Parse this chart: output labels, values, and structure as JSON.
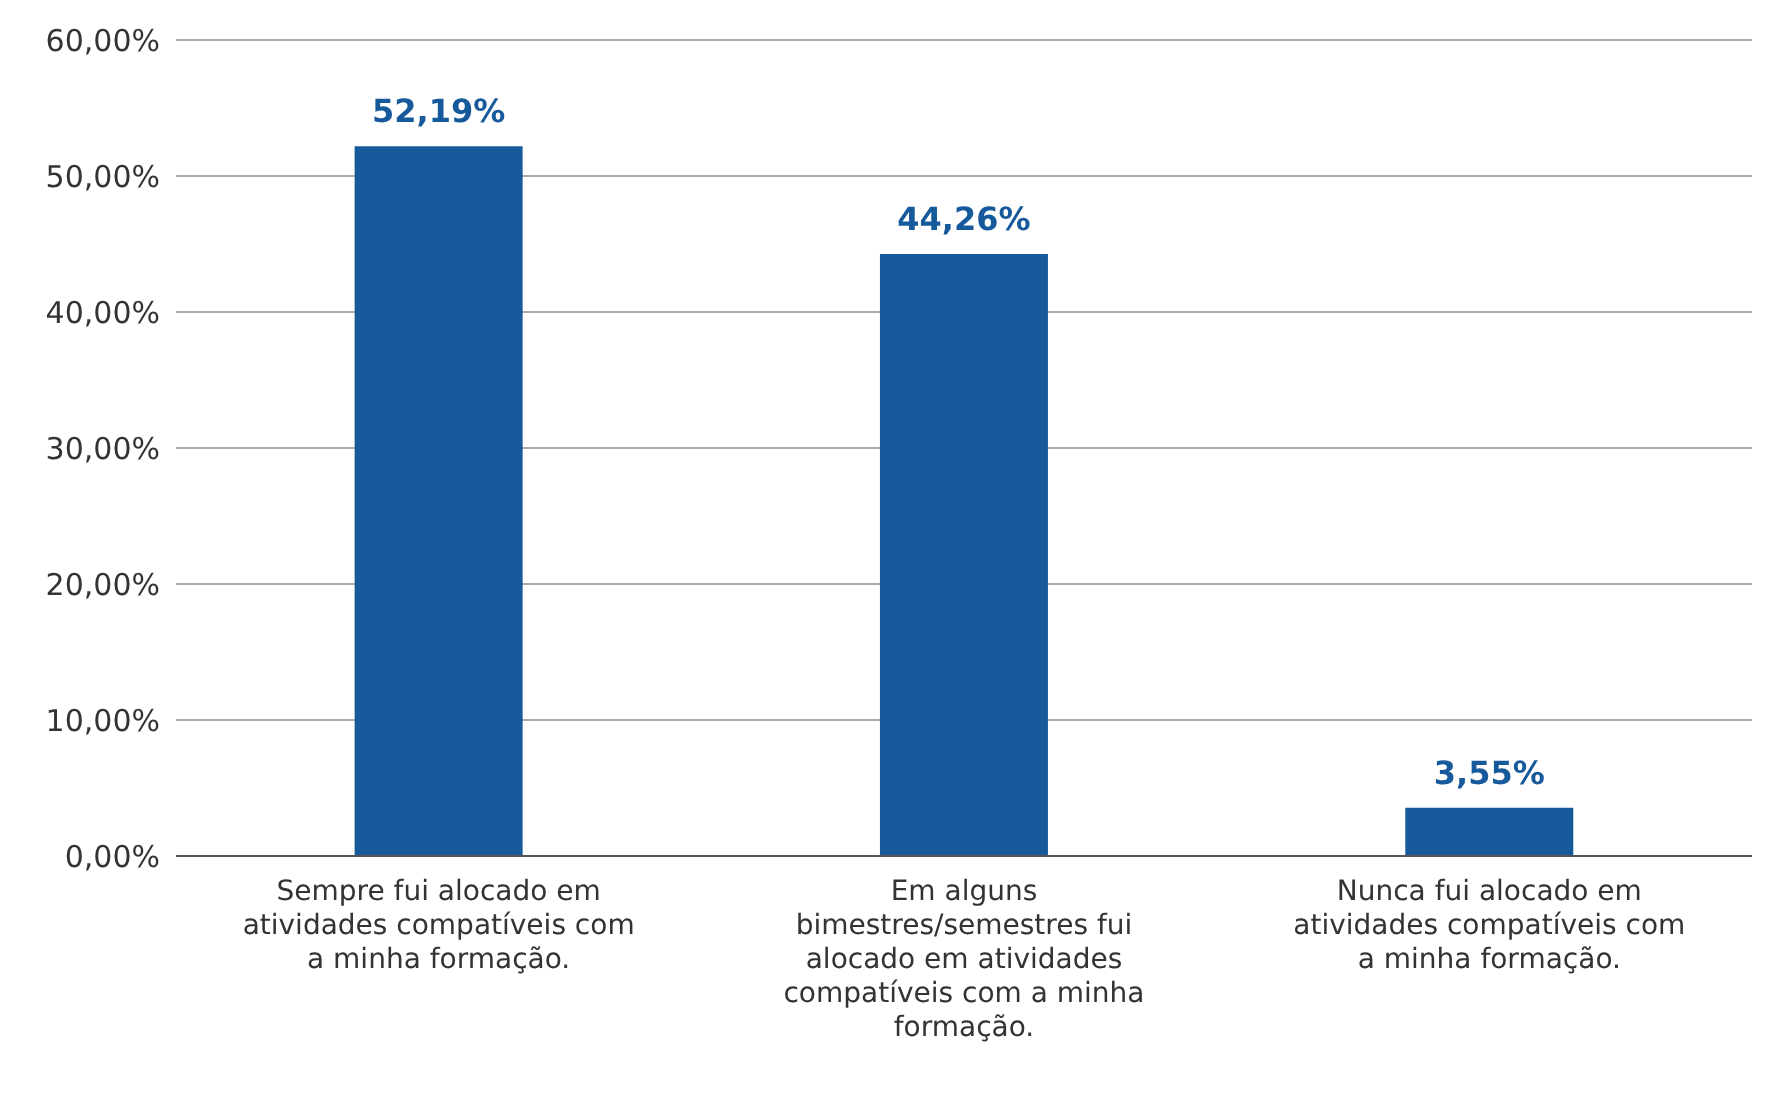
{
  "chart_data": {
    "type": "bar",
    "categories": [
      "Sempre fui alocado em atividades compatíveis com a minha formação.",
      "Em alguns bimestres/semestres fui alocado em atividades compatíveis com a minha formação.",
      "Nunca fui alocado em atividades compatíveis com a minha formação."
    ],
    "values": [
      52.19,
      44.26,
      3.55
    ],
    "value_labels": [
      "52,19%",
      "44,26%",
      "3,55%"
    ],
    "color": "#175a9c",
    "ylim": [
      0,
      60
    ],
    "yticks": [
      {
        "value": 0,
        "label": "0,00%"
      },
      {
        "value": 10,
        "label": "10,00%"
      },
      {
        "value": 20,
        "label": "20,00%"
      },
      {
        "value": 30,
        "label": "30,00%"
      },
      {
        "value": 40,
        "label": "40,00%"
      },
      {
        "value": 50,
        "label": "50,00%"
      },
      {
        "value": 60,
        "label": "60,00%"
      }
    ],
    "grid": "y"
  }
}
